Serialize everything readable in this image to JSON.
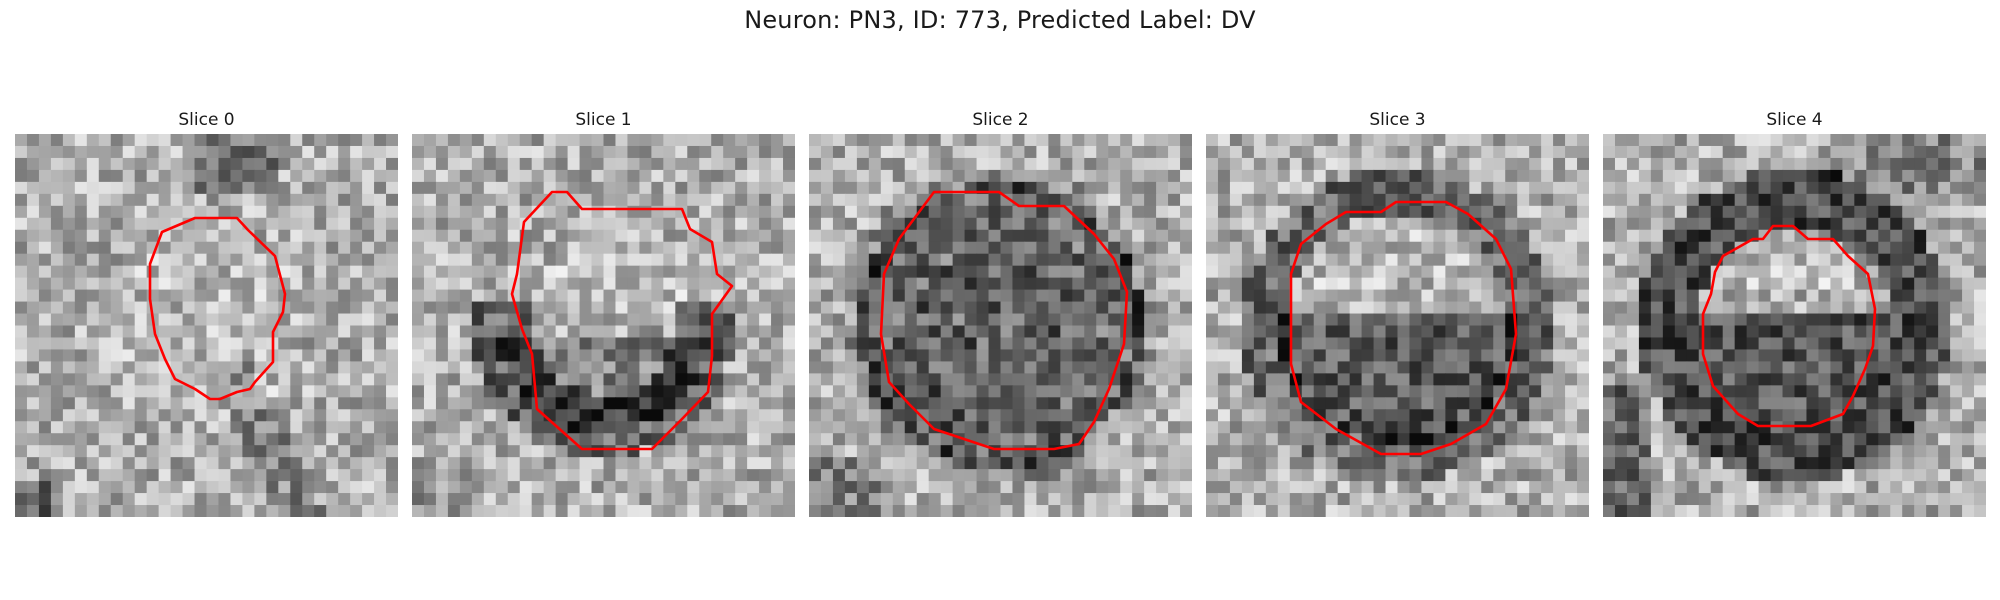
{
  "figure": {
    "title": "Neuron: PN3, ID: 773, Predicted Label: DV"
  },
  "contour_color": "#ff0000",
  "slices": [
    {
      "title": "Slice 0",
      "pattern": "faint-center"
    },
    {
      "title": "Slice 1",
      "pattern": "dark-bottom-cup"
    },
    {
      "title": "Slice 2",
      "pattern": "dark-mottled-disc"
    },
    {
      "title": "Slice 3",
      "pattern": "ring-dark-bottom"
    },
    {
      "title": "Slice 4",
      "pattern": "thick-dark-ring"
    }
  ]
}
